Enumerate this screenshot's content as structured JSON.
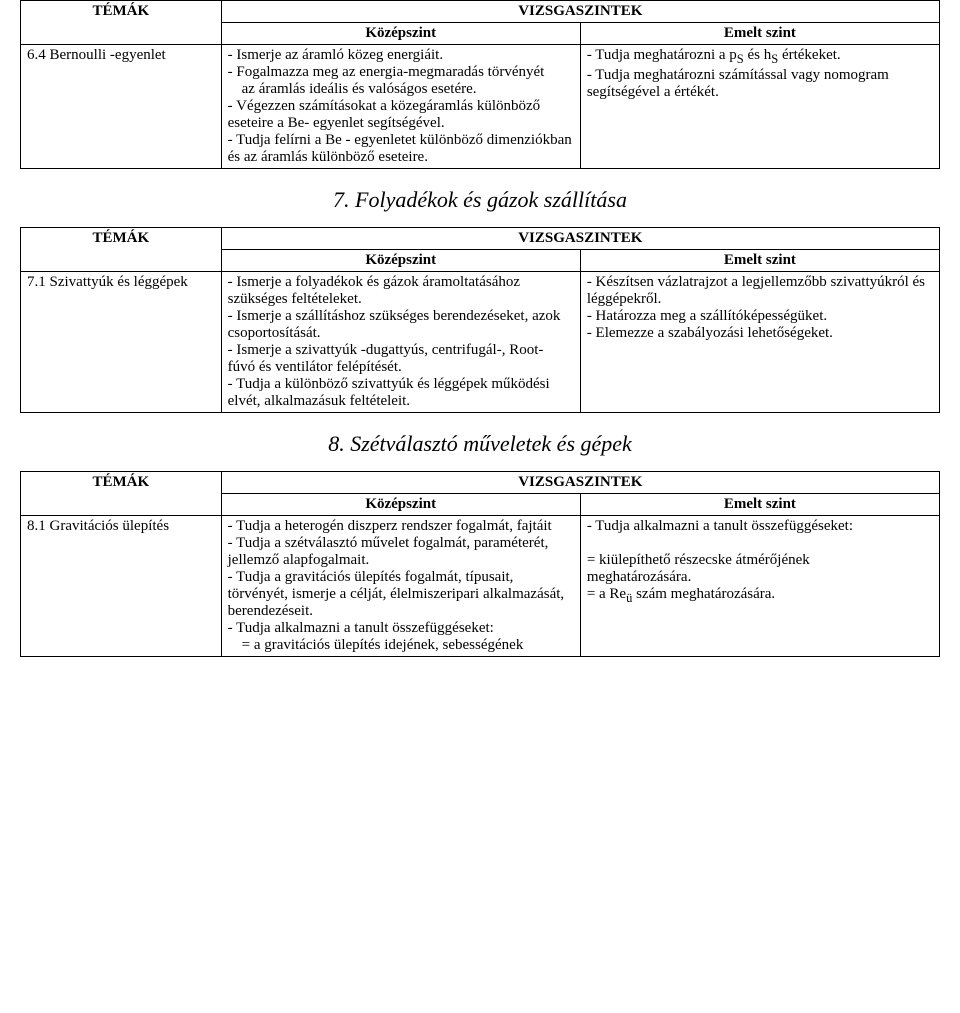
{
  "headers": {
    "topics": "TÉMÁK",
    "levels": "VIZSGASZINTEK",
    "mid": "Középszint",
    "adv": "Emelt szint"
  },
  "table1": {
    "row": {
      "topic": "6.4 Bernoulli -egyenlet",
      "mid1": " - Ismerje az áramló közeg energiáit.",
      "mid2": " - Fogalmazza meg az energia-megmaradás törvényét",
      "mid3": "    az áramlás ideális és valóságos esetére.",
      "mid4": " - Végezzen számításokat a közegáramlás különböző eseteire a Be- egyenlet segítségével.",
      "mid5": " - Tudja felírni a Be - egyenletet különböző dimenziókban és az áramlás különböző eseteire.",
      "adv1a": " - Tudja meghatározni a p",
      "adv1sub1": "S",
      "adv1b": " és h",
      "adv1sub2": "S",
      "adv1c": " értékeket.",
      "adv2": " - Tudja meghatározni számítással vagy nomogram segítségével a     értékét."
    }
  },
  "section7": "7. Folyadékok és gázok szállítása",
  "table2": {
    "row": {
      "topic": "7.1 Szivattyúk és léggépek",
      "mid1": " - Ismerje a folyadékok és gázok áramoltatásához szükséges feltételeket.",
      "mid2": " - Ismerje a szállításhoz szükséges berendezéseket, azok csoportosítását.",
      "mid3": " - Ismerje a szivattyúk -dugattyús, centrifugál-, Root- fúvó és ventilátor felépítését.",
      "mid4": " - Tudja a különböző szivattyúk és léggépek működési elvét, alkalmazásuk feltételeit.",
      "adv1": " - Készítsen vázlatrajzot a legjellemzőbb szivattyúkról és léggépekről.",
      "adv2": " - Határozza meg a szállítóképességüket.",
      "adv3": " - Elemezze a szabályozási lehetőségeket."
    }
  },
  "section8": "8. Szétválasztó műveletek és gépek",
  "table3": {
    "row": {
      "topic": "8.1 Gravitációs ülepítés",
      "mid1": " - Tudja a heterogén diszperz rendszer fogalmát, fajtáit",
      "mid2": " - Tudja a szétválasztó művelet fogalmát, paraméterét, jellemző alapfogalmait.",
      "mid3": " - Tudja a gravitációs ülepítés fogalmát, típusait, törvényét, ismerje a célját, élelmiszeripari alkalmazását, berendezéseit.",
      "mid4": " - Tudja alkalmazni a tanult összefüggéseket:",
      "mid5": "   =  a gravitációs ülepítés idejének, sebességének",
      "adv1": " - Tudja alkalmazni a tanult összefüggéseket:",
      "adv2": " = kiülepíthető részecske átmérőjének",
      "adv2b": "    meghatározására.",
      "adv3a": " = a  Re",
      "adv3sub": "ü",
      "adv3b": " szám meghatározására."
    }
  }
}
